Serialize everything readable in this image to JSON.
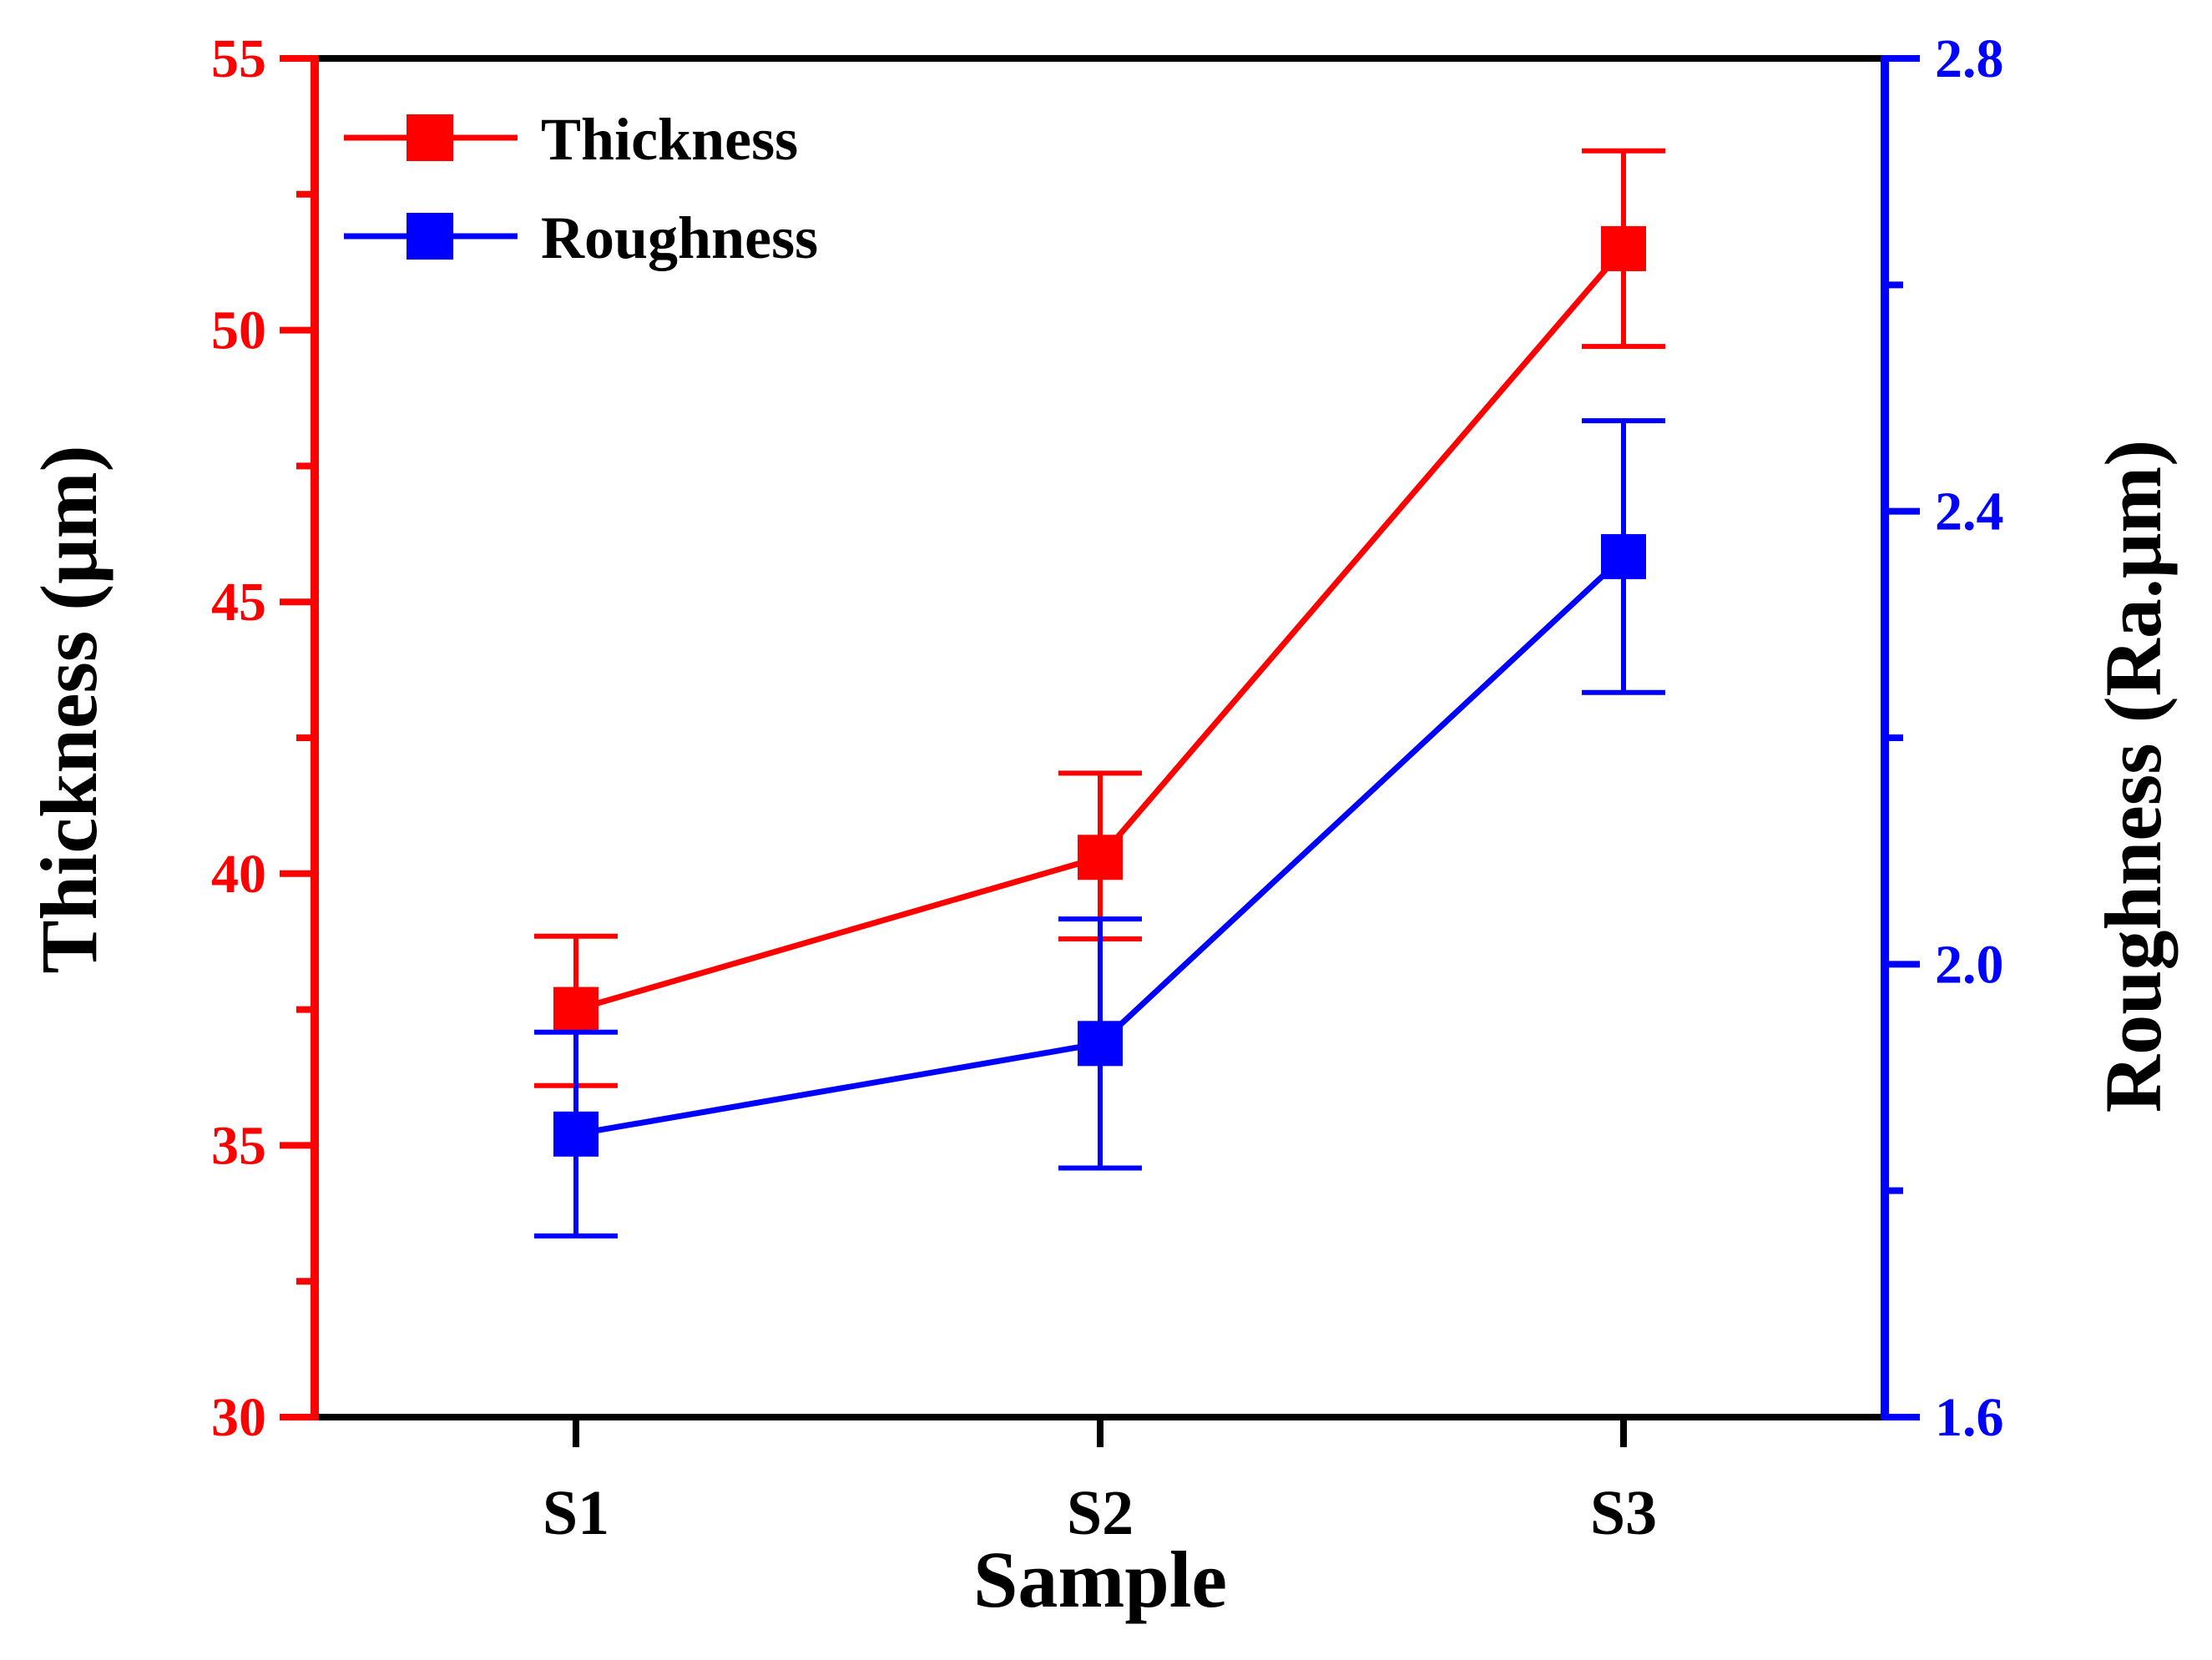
{
  "chart_data": {
    "type": "line",
    "categories": [
      "S1",
      "S2",
      "S3"
    ],
    "xlabel": "Sample",
    "y_left": {
      "label": "Thickness (μm)",
      "range": [
        30,
        55
      ],
      "ticks": [
        30,
        35,
        40,
        45,
        50,
        55
      ],
      "tick_labels": [
        "30",
        "35",
        "40",
        "45",
        "50",
        "55"
      ],
      "color": "#ff0000"
    },
    "y_right": {
      "label": "Roughness (Ra.μm)",
      "range": [
        1.6,
        2.8
      ],
      "ticks": [
        1.6,
        2.0,
        2.4,
        2.8
      ],
      "tick_labels": [
        "1.6",
        "2.0",
        "2.4",
        "2.8"
      ],
      "color": "#0000ff"
    },
    "series": [
      {
        "name": "Thickness",
        "axis": "left",
        "color": "#ff0000",
        "values": [
          37.5,
          40.3,
          51.5
        ],
        "err_upper": [
          38.85,
          41.85,
          53.3
        ],
        "err_lower": [
          36.1,
          38.8,
          49.7
        ]
      },
      {
        "name": "Roughness",
        "axis": "right",
        "color": "#0000ff",
        "values": [
          1.85,
          1.93,
          2.36
        ],
        "err_upper": [
          1.94,
          2.04,
          2.48
        ],
        "err_lower": [
          1.76,
          1.82,
          2.24
        ]
      }
    ],
    "legend": {
      "position": "top-left",
      "entries": [
        "Thickness",
        "Roughness"
      ]
    },
    "grid": false
  }
}
